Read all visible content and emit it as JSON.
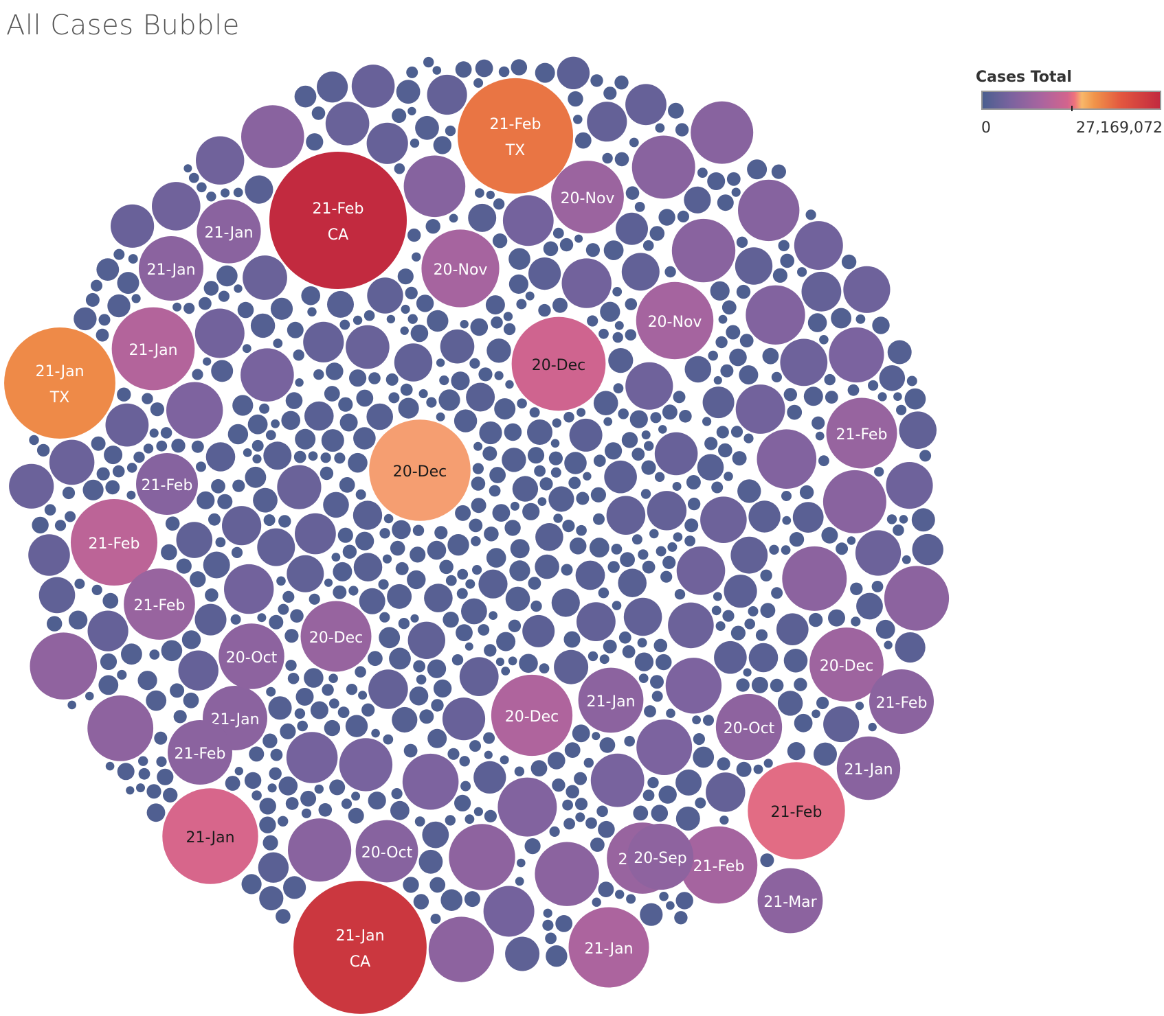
{
  "title": "All Cases Bubble",
  "legend": {
    "title": "Cases Total",
    "min_label": "0",
    "max_label": "27,169,072",
    "min": 0,
    "max": 27169072,
    "tick_value": 13600000,
    "colors": [
      "#4b5f8f",
      "#7b639f",
      "#a9649f",
      "#d3648d",
      "#f0737c",
      "#f8b86a",
      "#f0944a",
      "#e3573f",
      "#c22a3f"
    ]
  },
  "chart_data": {
    "type": "bubble",
    "title": "All Cases Bubble",
    "size_and_color_measure": "Cases Total",
    "labeled_bubbles": [
      {
        "month": "21-Feb",
        "state": "CA",
        "cases": 27169072
      },
      {
        "month": "21-Jan",
        "state": "CA",
        "cases": 25500000
      },
      {
        "month": "21-Feb",
        "state": "TX",
        "cases": 19200000
      },
      {
        "month": "21-Jan",
        "state": "TX",
        "cases": 17800000
      },
      {
        "month": "20-Dec",
        "state": "",
        "cases": 14800000
      },
      {
        "month": "20-Dec",
        "state": "",
        "cases": 12700000
      },
      {
        "month": "21-Jan",
        "state": "",
        "cases": 13200000
      },
      {
        "month": "21-Feb",
        "state": "",
        "cases": 13600000
      },
      {
        "month": "21-Feb",
        "state": "",
        "cases": 10800000
      },
      {
        "month": "21-Jan",
        "state": "",
        "cases": 9900000
      },
      {
        "month": "21-Jan",
        "state": "",
        "cases": 9300000
      },
      {
        "month": "20-Dec",
        "state": "",
        "cases": 9500000
      },
      {
        "month": "20-Nov",
        "state": "",
        "cases": 8600000
      },
      {
        "month": "20-Nov",
        "state": "",
        "cases": 8700000
      },
      {
        "month": "21-Feb",
        "state": "",
        "cases": 8600000
      },
      {
        "month": "21-Jan",
        "state": "",
        "cases": 7300000
      },
      {
        "month": "20-Nov",
        "state": "",
        "cases": 7600000
      },
      {
        "month": "21-Feb",
        "state": "",
        "cases": 7200000
      },
      {
        "month": "21-Feb",
        "state": "",
        "cases": 7300000
      },
      {
        "month": "20-Dec",
        "state": "",
        "cases": 7900000
      },
      {
        "month": "20-Dec",
        "state": "",
        "cases": 7200000
      },
      {
        "month": "21-Jan",
        "state": "",
        "cases": 6100000
      },
      {
        "month": "21-Jan",
        "state": "",
        "cases": 6000000
      },
      {
        "month": "20-Oct",
        "state": "",
        "cases": 6300000
      },
      {
        "month": "21-Jan",
        "state": "",
        "cases": 5800000
      },
      {
        "month": "20-Oct",
        "state": "",
        "cases": 6200000
      },
      {
        "month": "20-Oct",
        "state": "",
        "cases": 5600000
      },
      {
        "month": "21-Feb",
        "state": "",
        "cases": 6000000
      },
      {
        "month": "21-Jan",
        "state": "",
        "cases": 5900000
      },
      {
        "month": "21-Jan",
        "state": "",
        "cases": 6000000
      },
      {
        "month": "21-Feb",
        "state": "",
        "cases": 6000000
      },
      {
        "month": "20-Sep",
        "state": "",
        "cases": 6300000
      },
      {
        "month": "21-Mar",
        "state": "",
        "cases": 6100000
      },
      {
        "month": "21-Feb",
        "state": "",
        "cases": 5500000
      }
    ]
  }
}
